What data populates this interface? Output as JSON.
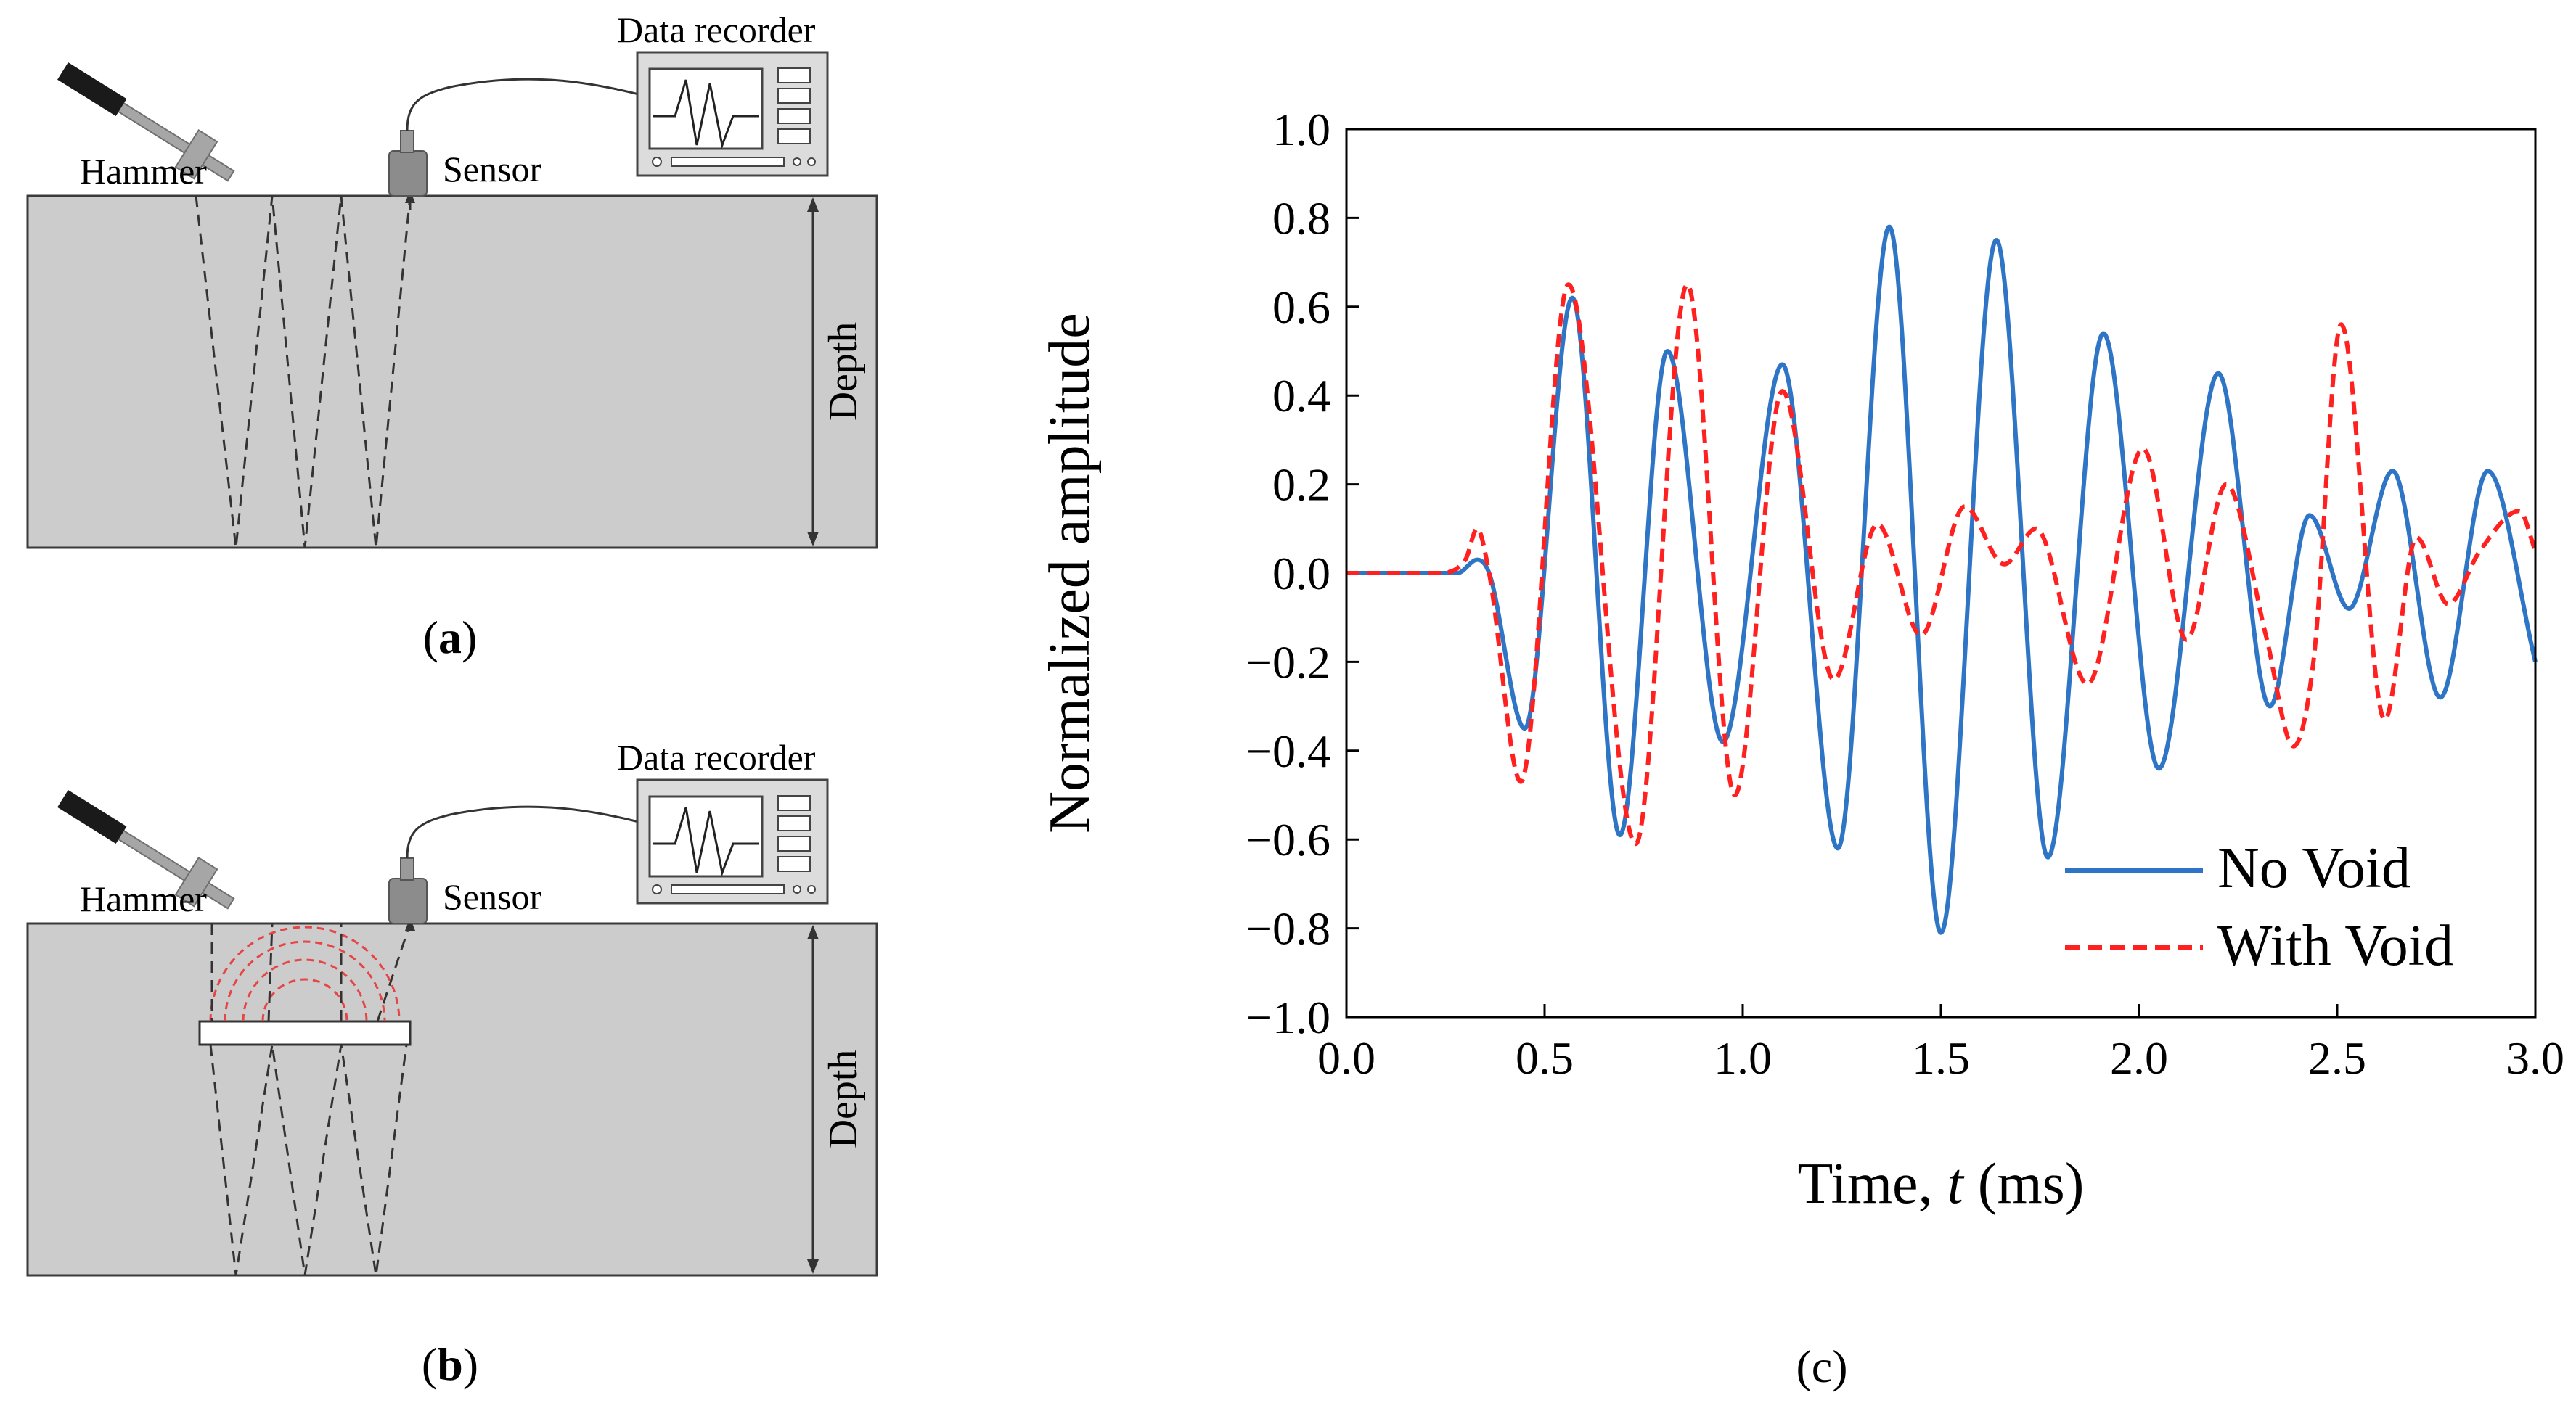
{
  "panel_a": {
    "caption_open": "(",
    "caption_letter": "a",
    "caption_close": ")",
    "hammer_label": "Hammer",
    "sensor_label": "Sensor",
    "recorder_label": "Data recorder",
    "depth_label": "Depth"
  },
  "panel_b": {
    "caption_open": "(",
    "caption_letter": "b",
    "caption_close": ")",
    "hammer_label": "Hammer",
    "sensor_label": "Sensor",
    "recorder_label": "Data recorder",
    "depth_label": "Depth"
  },
  "panel_c": {
    "caption": "(c)"
  },
  "colors": {
    "no_void": "#2e75c6",
    "with_void": "#ff2020",
    "slab": "#cccccc"
  },
  "chart_data": {
    "type": "line",
    "title": "",
    "xlabel_prefix": "Time, ",
    "xlabel_var": "t",
    "xlabel_suffix": " (ms)",
    "ylabel": "Normalized amplitude",
    "xlim": [
      0.0,
      3.0
    ],
    "ylim": [
      -1.0,
      1.0
    ],
    "x_ticks": [
      "0.0",
      "0.5",
      "1.0",
      "1.5",
      "2.0",
      "2.5",
      "3.0"
    ],
    "y_ticks": [
      "1.0",
      "0.8",
      "0.6",
      "0.4",
      "0.2",
      "0.0",
      "−0.2",
      "−0.4",
      "−0.6",
      "−0.8",
      "−1.0"
    ],
    "legend_position": "bottom-right",
    "series": [
      {
        "name": "No Void",
        "style": "solid",
        "points": [
          [
            0.0,
            0.0
          ],
          [
            0.28,
            0.0
          ],
          [
            0.33,
            0.03
          ],
          [
            0.36,
            0.0
          ],
          [
            0.45,
            -0.35
          ],
          [
            0.57,
            0.62
          ],
          [
            0.69,
            -0.59
          ],
          [
            0.81,
            0.5
          ],
          [
            0.95,
            -0.38
          ],
          [
            1.1,
            0.47
          ],
          [
            1.24,
            -0.62
          ],
          [
            1.37,
            0.78
          ],
          [
            1.5,
            -0.81
          ],
          [
            1.64,
            0.75
          ],
          [
            1.77,
            -0.64
          ],
          [
            1.91,
            0.54
          ],
          [
            2.05,
            -0.44
          ],
          [
            2.2,
            0.45
          ],
          [
            2.33,
            -0.3
          ],
          [
            2.43,
            0.13
          ],
          [
            2.53,
            -0.08
          ],
          [
            2.64,
            0.23
          ],
          [
            2.76,
            -0.28
          ],
          [
            2.88,
            0.23
          ],
          [
            3.0,
            -0.2
          ]
        ]
      },
      {
        "name": "With Void",
        "style": "dashed",
        "points": [
          [
            0.0,
            0.0
          ],
          [
            0.23,
            0.0
          ],
          [
            0.3,
            0.03
          ],
          [
            0.33,
            0.1
          ],
          [
            0.36,
            0.0
          ],
          [
            0.44,
            -0.47
          ],
          [
            0.56,
            0.65
          ],
          [
            0.73,
            -0.61
          ],
          [
            0.86,
            0.65
          ],
          [
            0.98,
            -0.5
          ],
          [
            1.1,
            0.41
          ],
          [
            1.23,
            -0.24
          ],
          [
            1.34,
            0.11
          ],
          [
            1.45,
            -0.14
          ],
          [
            1.56,
            0.15
          ],
          [
            1.66,
            0.02
          ],
          [
            1.74,
            0.1
          ],
          [
            1.87,
            -0.25
          ],
          [
            2.01,
            0.28
          ],
          [
            2.12,
            -0.15
          ],
          [
            2.22,
            0.2
          ],
          [
            2.32,
            -0.14
          ],
          [
            2.39,
            -0.39
          ],
          [
            2.44,
            -0.2
          ],
          [
            2.51,
            0.56
          ],
          [
            2.62,
            -0.33
          ],
          [
            2.7,
            0.08
          ],
          [
            2.78,
            -0.07
          ],
          [
            2.86,
            0.05
          ],
          [
            2.96,
            0.14
          ],
          [
            3.0,
            0.05
          ]
        ]
      }
    ]
  }
}
